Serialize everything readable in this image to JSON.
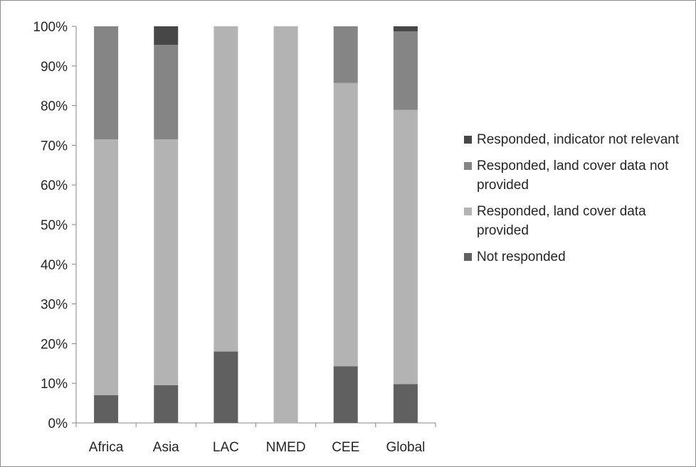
{
  "chart_data": {
    "type": "bar",
    "stacked": true,
    "percent": true,
    "title": "",
    "xlabel": "",
    "ylabel": "",
    "ylim": [
      0,
      100
    ],
    "yticks": [
      "0%",
      "10%",
      "20%",
      "30%",
      "40%",
      "50%",
      "60%",
      "70%",
      "80%",
      "90%",
      "100%"
    ],
    "categories": [
      "Africa",
      "Asia",
      "LAC",
      "NMED",
      "CEE",
      "Global"
    ],
    "series": [
      {
        "name": "Not responded",
        "color": "#606060",
        "values": [
          7,
          9.5,
          18,
          0,
          14.3,
          9.8
        ]
      },
      {
        "name": "Responded, land cover data provided",
        "color": "#b3b3b3",
        "values": [
          64.5,
          62,
          82,
          100,
          71.4,
          69.1
        ]
      },
      {
        "name": "Responded, land cover data not provided",
        "color": "#858585",
        "values": [
          28.5,
          23.8,
          0,
          0,
          14.3,
          19.8
        ]
      },
      {
        "name": "Responded, indicator not relevant",
        "color": "#474747",
        "values": [
          0,
          4.7,
          0,
          0,
          0,
          1.3
        ]
      }
    ],
    "grid": false,
    "legend_position": "right"
  },
  "legend": {
    "items": [
      {
        "label": "Responded, indicator not relevant",
        "color": "#474747"
      },
      {
        "label": "Responded, land cover data not provided",
        "color": "#858585"
      },
      {
        "label": "Responded, land cover data provided",
        "color": "#b3b3b3"
      },
      {
        "label": "Not responded",
        "color": "#606060"
      }
    ]
  }
}
